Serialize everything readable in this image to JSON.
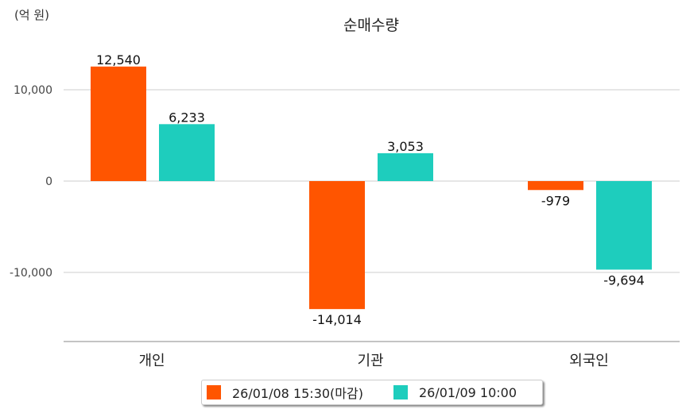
{
  "chart_data": {
    "type": "bar",
    "title": "순매수량",
    "unit_label": "(억 원)",
    "categories": [
      "개인",
      "기관",
      "외국인"
    ],
    "series": [
      {
        "name": "26/01/08 15:30(마감)",
        "color": "#ff5500",
        "values": [
          12540,
          -14014,
          -979
        ],
        "labels": [
          "12,540",
          "-14,014",
          "-979"
        ]
      },
      {
        "name": "26/01/09 10:00",
        "color": "#1ecdbd",
        "values": [
          6233,
          3053,
          -9694
        ],
        "labels": [
          "6,233",
          "3,053",
          "-9,694"
        ]
      }
    ],
    "yticks": [
      10000,
      0,
      -10000
    ],
    "ytick_labels": [
      "10,000",
      "0",
      "-10,000"
    ],
    "ylim": [
      -17500,
      17000
    ],
    "grid": true,
    "legend_position": "bottom"
  }
}
